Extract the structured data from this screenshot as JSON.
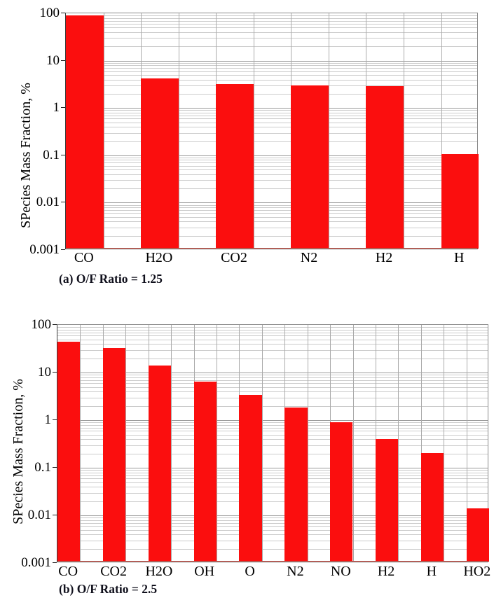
{
  "page": {
    "background": "#ffffff",
    "text_color": "#000000"
  },
  "colors": {
    "bar": "#fb0e0e",
    "minor_gridline": "#cbcbcb",
    "major_gridline": "#9b9b9b",
    "vertical_gridline": "#ababab",
    "plot_border": "#8a8a8a",
    "axis_line": "#303030",
    "baseline_red": "#ff7a6e",
    "caption_text": "#10101c"
  },
  "chart_data": [
    {
      "type": "bar",
      "title": "",
      "caption": "(a) O/F Ratio = 1.25",
      "xlabel": "",
      "ylabel": "SPecies Mass Fraction, %",
      "yscale": "log",
      "ylim": [
        0.001,
        100
      ],
      "ytick_labels": [
        "100",
        "10",
        "1",
        "0.1",
        "0.01",
        "0.001"
      ],
      "grid": "horizontal log minor+major, vertical at bar edges",
      "legend": "none",
      "categories": [
        "CO",
        "H2O",
        "CO2",
        "N2",
        "H2",
        "H"
      ],
      "values": [
        85,
        4.0,
        3.0,
        2.8,
        2.7,
        0.1
      ]
    },
    {
      "type": "bar",
      "title": "",
      "caption": "(b) O/F Ratio = 2.5",
      "xlabel": "",
      "ylabel": "SPecies Mass Fraction, %",
      "yscale": "log",
      "ylim": [
        0.001,
        100
      ],
      "ytick_labels": [
        "100",
        "10",
        "1",
        "0.1",
        "0.01",
        "0.001"
      ],
      "grid": "horizontal log minor+major, vertical at bar edges",
      "legend": "none",
      "categories": [
        "CO",
        "CO2",
        "H2O",
        "OH",
        "O",
        "N2",
        "NO",
        "H2",
        "H",
        "HO2"
      ],
      "values": [
        42,
        31,
        13,
        6.0,
        3.2,
        1.7,
        0.85,
        0.38,
        0.19,
        0.013
      ]
    }
  ]
}
